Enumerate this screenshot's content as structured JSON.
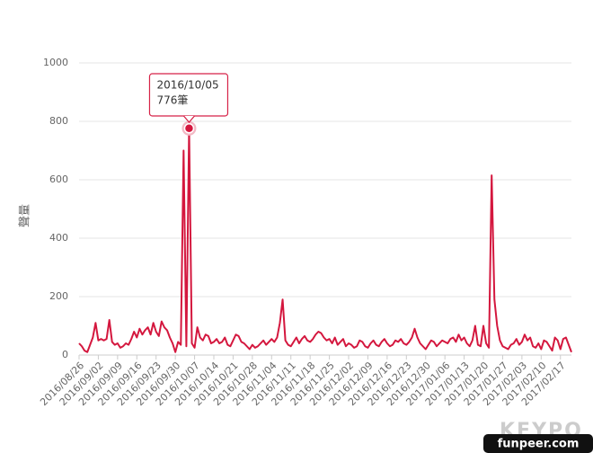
{
  "chart_data": {
    "type": "line",
    "y_label": "聲量",
    "color": "#d4173e",
    "grid": true,
    "ylim": [
      0,
      1000
    ],
    "yticks": [
      0,
      200,
      400,
      600,
      800,
      1000
    ],
    "categories": [
      "2016/08/26",
      null,
      null,
      null,
      null,
      null,
      null,
      "2016/09/02",
      null,
      null,
      null,
      null,
      null,
      null,
      "2016/09/09",
      null,
      null,
      null,
      null,
      null,
      null,
      "2016/09/16",
      null,
      null,
      null,
      null,
      null,
      null,
      "2016/09/23",
      null,
      null,
      null,
      null,
      null,
      null,
      "2016/09/30",
      null,
      null,
      null,
      null,
      null,
      null,
      "2016/10/07",
      null,
      null,
      null,
      null,
      null,
      null,
      "2016/10/14",
      null,
      null,
      null,
      null,
      null,
      null,
      "2016/10/21",
      null,
      null,
      null,
      null,
      null,
      null,
      "2016/10/28",
      null,
      null,
      null,
      null,
      null,
      null,
      "2016/11/04",
      null,
      null,
      null,
      null,
      null,
      null,
      "2016/11/11",
      null,
      null,
      null,
      null,
      null,
      null,
      "2016/11/18",
      null,
      null,
      null,
      null,
      null,
      null,
      "2016/11/25",
      null,
      null,
      null,
      null,
      null,
      null,
      "2016/12/02",
      null,
      null,
      null,
      null,
      null,
      null,
      "2016/12/09",
      null,
      null,
      null,
      null,
      null,
      null,
      "2016/12/16",
      null,
      null,
      null,
      null,
      null,
      null,
      "2016/12/23",
      null,
      null,
      null,
      null,
      null,
      null,
      "2016/12/30",
      null,
      null,
      null,
      null,
      null,
      null,
      "2017/01/06",
      null,
      null,
      null,
      null,
      null,
      null,
      "2017/01/13",
      null,
      null,
      null,
      null,
      null,
      null,
      "2017/01/20",
      null,
      null,
      null,
      null,
      null,
      null,
      "2017/01/27",
      null,
      null,
      null,
      null,
      null,
      null,
      "2017/02/03",
      null,
      null,
      null,
      null,
      null,
      null,
      "2017/02/10",
      null,
      null,
      null,
      null,
      null,
      null,
      "2017/02/17",
      null,
      null,
      null,
      null
    ],
    "values": [
      40,
      30,
      15,
      10,
      35,
      60,
      110,
      50,
      55,
      50,
      55,
      120,
      45,
      35,
      40,
      25,
      30,
      40,
      35,
      55,
      80,
      60,
      90,
      70,
      85,
      95,
      70,
      110,
      80,
      65,
      115,
      95,
      85,
      60,
      40,
      10,
      45,
      35,
      700,
      30,
      776,
      40,
      25,
      95,
      60,
      50,
      70,
      65,
      40,
      45,
      55,
      40,
      45,
      60,
      35,
      30,
      50,
      70,
      65,
      45,
      40,
      30,
      20,
      35,
      25,
      30,
      40,
      50,
      35,
      45,
      55,
      45,
      60,
      110,
      190,
      50,
      35,
      30,
      45,
      60,
      40,
      55,
      65,
      50,
      45,
      55,
      70,
      80,
      75,
      60,
      50,
      55,
      40,
      60,
      35,
      45,
      55,
      30,
      40,
      35,
      25,
      30,
      50,
      45,
      30,
      25,
      40,
      50,
      35,
      30,
      45,
      55,
      40,
      30,
      35,
      50,
      45,
      55,
      40,
      35,
      45,
      60,
      90,
      60,
      40,
      30,
      20,
      35,
      50,
      45,
      30,
      40,
      50,
      45,
      40,
      55,
      60,
      45,
      70,
      50,
      60,
      40,
      30,
      50,
      100,
      35,
      30,
      100,
      40,
      25,
      615,
      190,
      100,
      50,
      30,
      25,
      20,
      35,
      40,
      55,
      35,
      45,
      70,
      50,
      60,
      30,
      25,
      40,
      20,
      50,
      45,
      30,
      15,
      60,
      50,
      20,
      55,
      60,
      35,
      10
    ],
    "tooltip": {
      "x": "2016/10/05",
      "label": "776筆"
    },
    "watermarks": [
      "KEYPO",
      "funpeer.com"
    ]
  }
}
